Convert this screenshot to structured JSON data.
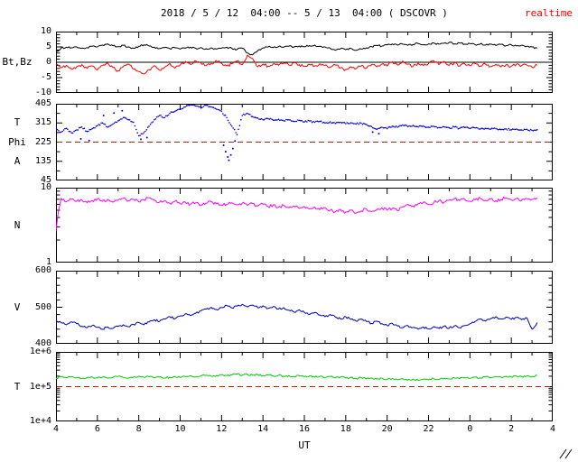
{
  "header": {
    "title": "2018 / 5 / 12  04:00 -- 5 / 13  04:00 ( DSCOVR )",
    "realtime_label": "realtime",
    "realtime_color": "#ff0000"
  },
  "xlabel": "UT",
  "chart_data": {
    "type": "line",
    "title": "2018 / 5 / 12  04:00 -- 5 / 13  04:00 ( DSCOVR )",
    "subtitle": "realtime",
    "x_axis": {
      "label": "UT",
      "min": 4,
      "max": 28,
      "start": 4,
      "step": 0.25,
      "ticks": [
        {
          "v": 4,
          "l": "4"
        },
        {
          "v": 6,
          "l": "6"
        },
        {
          "v": 8,
          "l": "8"
        },
        {
          "v": 10,
          "l": "10"
        },
        {
          "v": 12,
          "l": "12"
        },
        {
          "v": 14,
          "l": "14"
        },
        {
          "v": 16,
          "l": "16"
        },
        {
          "v": 18,
          "l": "18"
        },
        {
          "v": 20,
          "l": "20"
        },
        {
          "v": 22,
          "l": "22"
        },
        {
          "v": 24,
          "l": "0"
        },
        {
          "v": 26,
          "l": "2"
        },
        {
          "v": 28,
          "l": "4"
        }
      ]
    },
    "panels": [
      {
        "name": "bt-bz",
        "side_labels": [
          "Bt,Bz"
        ],
        "type": "line",
        "scale": "linear",
        "ylim": [
          -10,
          10
        ],
        "minor_step": 1,
        "yticks": [
          {
            "v": 10,
            "l": "10"
          },
          {
            "v": 5,
            "l": "5"
          },
          {
            "v": 0,
            "l": "0"
          },
          {
            "v": -5,
            "l": "-5"
          },
          {
            "v": -10,
            "l": "-10"
          }
        ],
        "hlines": [
          {
            "y": 0,
            "style": "solid",
            "color": "#000000"
          }
        ],
        "series": [
          {
            "name": "Bt",
            "color": "#000000",
            "noise": 0.3,
            "values": [
              3.2,
              4.6,
              4.9,
              4.7,
              5.0,
              4.6,
              4.8,
              5.2,
              5.0,
              5.6,
              6.0,
              5.4,
              5.1,
              5.5,
              5.0,
              4.6,
              5.2,
              5.7,
              5.3,
              4.9,
              4.5,
              4.8,
              4.4,
              4.7,
              4.3,
              4.6,
              4.9,
              4.5,
              4.8,
              4.4,
              4.7,
              4.3,
              4.6,
              4.9,
              4.5,
              4.2,
              4.6,
              3.0,
              2.4,
              3.8,
              4.7,
              5.0,
              4.8,
              5.1,
              4.9,
              5.2,
              5.0,
              5.3,
              5.1,
              5.4,
              5.6,
              5.2,
              5.0,
              4.6,
              3.9,
              4.4,
              4.1,
              4.5,
              3.9,
              4.3,
              4.7,
              5.1,
              5.5,
              5.3,
              5.7,
              6.0,
              5.6,
              5.9,
              5.5,
              5.8,
              6.1,
              5.7,
              6.0,
              6.3,
              5.9,
              6.2,
              6.5,
              6.0,
              6.3,
              5.9,
              6.1,
              5.7,
              6.0,
              5.6,
              5.9,
              5.5,
              5.8,
              5.4,
              5.7,
              5.3,
              5.6,
              5.2,
              5.0,
              4.6
            ]
          },
          {
            "name": "Bz",
            "color": "#ff0000",
            "noise": 0.45,
            "values": [
              -0.5,
              -1.8,
              -1.0,
              -2.3,
              -1.5,
              -0.8,
              -2.0,
              -1.2,
              -2.5,
              -1.0,
              -0.3,
              -1.7,
              -2.8,
              -1.4,
              -0.6,
              -2.2,
              -3.0,
              -3.8,
              -2.4,
              -1.1,
              -2.6,
              -1.6,
              -0.4,
              -1.9,
              -0.9,
              0.3,
              -0.7,
              0.5,
              -0.2,
              -1.1,
              -0.4,
              0.6,
              -0.3,
              -1.2,
              -0.5,
              0.4,
              -0.8,
              2.3,
              1.2,
              -1.5,
              -0.6,
              -1.3,
              -0.5,
              -1.0,
              -0.3,
              -0.9,
              -0.2,
              -0.8,
              -1.4,
              -0.7,
              -1.2,
              -0.5,
              -1.0,
              -1.6,
              -0.9,
              -1.8,
              -2.4,
              -1.5,
              -2.1,
              -1.2,
              -1.9,
              -0.8,
              -1.5,
              -0.6,
              -1.2,
              0.2,
              -0.9,
              0.4,
              -0.6,
              -1.4,
              -0.3,
              -1.1,
              -0.4,
              0.5,
              -0.8,
              0.3,
              -1.0,
              -0.2,
              -1.3,
              -0.5,
              -1.1,
              -0.4,
              -1.2,
              -0.6,
              -1.4,
              -0.7,
              -1.5,
              -0.8,
              -1.3,
              -0.6,
              -1.1,
              -0.9,
              -1.6,
              -1.0
            ]
          }
        ]
      },
      {
        "name": "phi",
        "side_labels": [
          "T",
          "Phi",
          "A"
        ],
        "type": "scatter",
        "scale": "linear",
        "ylim": [
          45,
          405
        ],
        "minor_step": 45,
        "yticks": [
          {
            "v": 405,
            "l": "405"
          },
          {
            "v": 315,
            "l": "315"
          },
          {
            "v": 225,
            "l": "225"
          },
          {
            "v": 135,
            "l": "135"
          },
          {
            "v": 45,
            "l": "45"
          }
        ],
        "hlines": [
          {
            "y": 225,
            "style": "dashed",
            "color": "#bb2200"
          }
        ],
        "series": [
          {
            "name": "Phi",
            "color": "#0000cc",
            "noise": 4,
            "values": [
              285,
              272,
              290,
              268,
              282,
              296,
              275,
              288,
              302,
              315,
              295,
              310,
              325,
              340,
              330,
              318,
              255,
              270,
              300,
              330,
              350,
              340,
              360,
              370,
              380,
              390,
              400,
              395,
              385,
              398,
              390,
              380,
              370,
              340,
              300,
              260,
              350,
              360,
              345,
              338,
              330,
              335,
              328,
              332,
              325,
              330,
              322,
              327,
              320,
              325,
              318,
              322,
              315,
              320,
              313,
              318,
              312,
              316,
              310,
              314,
              308,
              298,
              285,
              295,
              288,
              300,
              295,
              305,
              298,
              303,
              296,
              300,
              295,
              299,
              293,
              297,
              292,
              296,
              290,
              294,
              289,
              292,
              287,
              290,
              286,
              289,
              284,
              287,
              283,
              286,
              282,
              285,
              280,
              283
            ]
          }
        ],
        "extra_points": [
          [
            5.2,
            240
          ],
          [
            5.6,
            232
          ],
          [
            6.3,
            350
          ],
          [
            6.8,
            362
          ],
          [
            7.2,
            372
          ],
          [
            8.1,
            238
          ],
          [
            8.4,
            246
          ],
          [
            11.9,
            405
          ],
          [
            12.1,
            210
          ],
          [
            12.2,
            180
          ],
          [
            12.3,
            155
          ],
          [
            12.35,
            140
          ],
          [
            12.45,
            165
          ],
          [
            12.55,
            195
          ],
          [
            12.65,
            230
          ],
          [
            19.3,
            272
          ],
          [
            19.6,
            265
          ]
        ]
      },
      {
        "name": "n",
        "side_labels": [
          "N"
        ],
        "type": "line",
        "scale": "log",
        "ylim": [
          1,
          10
        ],
        "yticks": [
          {
            "v": 10,
            "l": "10"
          },
          {
            "v": 1,
            "l": "1"
          }
        ],
        "series": [
          {
            "name": "N",
            "color": "#ff00ff",
            "noise": 0.05,
            "values": [
              2.6,
              7.2,
              6.5,
              7.0,
              6.6,
              6.9,
              6.3,
              6.7,
              7.1,
              6.6,
              7.0,
              6.4,
              6.8,
              7.2,
              6.7,
              7.0,
              6.5,
              6.9,
              7.3,
              6.8,
              6.4,
              6.7,
              6.2,
              6.6,
              6.1,
              6.4,
              6.0,
              6.3,
              5.9,
              6.2,
              6.5,
              6.1,
              5.8,
              6.0,
              6.3,
              5.9,
              6.2,
              5.8,
              6.1,
              5.7,
              6.0,
              5.6,
              5.9,
              5.5,
              5.8,
              5.4,
              5.7,
              5.3,
              5.6,
              5.2,
              5.5,
              5.1,
              5.4,
              5.0,
              4.8,
              5.1,
              4.7,
              5.0,
              4.6,
              4.9,
              5.2,
              4.8,
              5.1,
              5.4,
              5.0,
              5.3,
              4.9,
              5.6,
              6.0,
              5.7,
              6.1,
              6.4,
              6.0,
              6.3,
              6.7,
              6.4,
              6.8,
              7.1,
              6.7,
              7.0,
              6.6,
              6.9,
              7.2,
              6.8,
              7.1,
              6.7,
              7.0,
              7.3,
              6.9,
              7.2,
              6.8,
              7.1,
              7.0,
              7.3
            ]
          }
        ]
      },
      {
        "name": "v",
        "side_labels": [
          "V"
        ],
        "type": "line",
        "scale": "linear",
        "ylim": [
          400,
          600
        ],
        "minor_step": 20,
        "yticks": [
          {
            "v": 600,
            "l": "600"
          },
          {
            "v": 500,
            "l": "500"
          },
          {
            "v": 400,
            "l": "400"
          }
        ],
        "series": [
          {
            "name": "V",
            "color": "#0000bb",
            "noise": 3,
            "values": [
              465,
              458,
              452,
              460,
              455,
              448,
              444,
              450,
              445,
              440,
              446,
              442,
              448,
              452,
              447,
              453,
              458,
              452,
              460,
              466,
              461,
              468,
              474,
              469,
              476,
              482,
              477,
              484,
              490,
              495,
              500,
              494,
              499,
              505,
              498,
              503,
              508,
              501,
              506,
              499,
              504,
              497,
              502,
              495,
              499,
              492,
              487,
              493,
              486,
              480,
              486,
              479,
              474,
              480,
              473,
              468,
              474,
              467,
              462,
              468,
              461,
              456,
              462,
              455,
              450,
              456,
              449,
              444,
              450,
              445,
              440,
              446,
              441,
              447,
              442,
              448,
              443,
              449,
              444,
              450,
              455,
              461,
              468,
              462,
              469,
              474,
              468,
              473,
              467,
              472,
              466,
              471,
              440,
              458
            ]
          }
        ]
      },
      {
        "name": "t",
        "side_labels": [
          "T"
        ],
        "type": "line",
        "scale": "log",
        "ylim": [
          10000,
          1000000
        ],
        "yticks": [
          {
            "v": 1000000,
            "l": "1e+6"
          },
          {
            "v": 100000,
            "l": "1e+5"
          },
          {
            "v": 10000,
            "l": "1e+4"
          }
        ],
        "hlines": [
          {
            "y": 100000,
            "style": "dashed",
            "color": "#bb2200"
          }
        ],
        "series": [
          {
            "name": "T",
            "color": "#00cc00",
            "noise": 0.06,
            "values": [
              175000,
              190000,
              180000,
              195000,
              185000,
              170000,
              182000,
              192000,
              178000,
              188000,
              174000,
              186000,
              196000,
              184000,
              176000,
              190000,
              200000,
              186000,
              194000,
              180000,
              190000,
              176000,
              186000,
              196000,
              184000,
              194000,
              206000,
              192000,
              202000,
              214000,
              200000,
              210000,
              222000,
              208000,
              218000,
              230000,
              215000,
              226000,
              212000,
              222000,
              208000,
              218000,
              204000,
              214000,
              200000,
              210000,
              196000,
              206000,
              192000,
              202000,
              188000,
              198000,
              184000,
              194000,
              180000,
              190000,
              176000,
              186000,
              172000,
              182000,
              168000,
              178000,
              164000,
              174000,
              160000,
              172000,
              158000,
              170000,
              155000,
              166000,
              152000,
              164000,
              158000,
              170000,
              162000,
              174000,
              166000,
              178000,
              170000,
              182000,
              174000,
              186000,
              178000,
              190000,
              182000,
              194000,
              186000,
              198000,
              190000,
              202000,
              194000,
              206000,
              198000,
              210000
            ]
          }
        ]
      }
    ]
  }
}
